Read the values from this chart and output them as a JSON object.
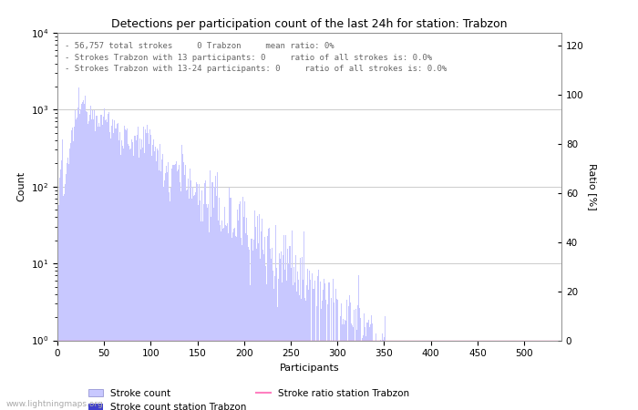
{
  "title": "Detections per participation count of the last 24h for station: Trabzon",
  "xlabel": "Participants",
  "ylabel_left": "Count",
  "ylabel_right": "Ratio [%]",
  "annotation_lines": [
    "56,757 total strokes     0 Trabzon     mean ratio: 0%",
    "Strokes Trabzon with 13 participants: 0     ratio of all strokes is: 0.0%",
    "Strokes Trabzon with 13-24 participants: 0     ratio of all strokes is: 0.0%"
  ],
  "bar_color_light": "#c8c8ff",
  "bar_color_dark": "#4040cc",
  "ratio_line_color": "#ff80c0",
  "background_color": "#ffffff",
  "grid_color": "#cccccc",
  "watermark": "www.lightningmaps.org",
  "xlim": [
    0,
    540
  ],
  "ylim_log_min": 1,
  "ylim_log_max": 10000,
  "ylim_ratio": [
    0,
    125
  ],
  "ratio_ticks": [
    0,
    20,
    40,
    60,
    80,
    100,
    120
  ],
  "xticks": [
    0,
    50,
    100,
    150,
    200,
    250,
    300,
    350,
    400,
    450,
    500
  ],
  "legend_entries": [
    "Stroke count",
    "Stroke count station Trabzon",
    "Stroke ratio station Trabzon"
  ]
}
